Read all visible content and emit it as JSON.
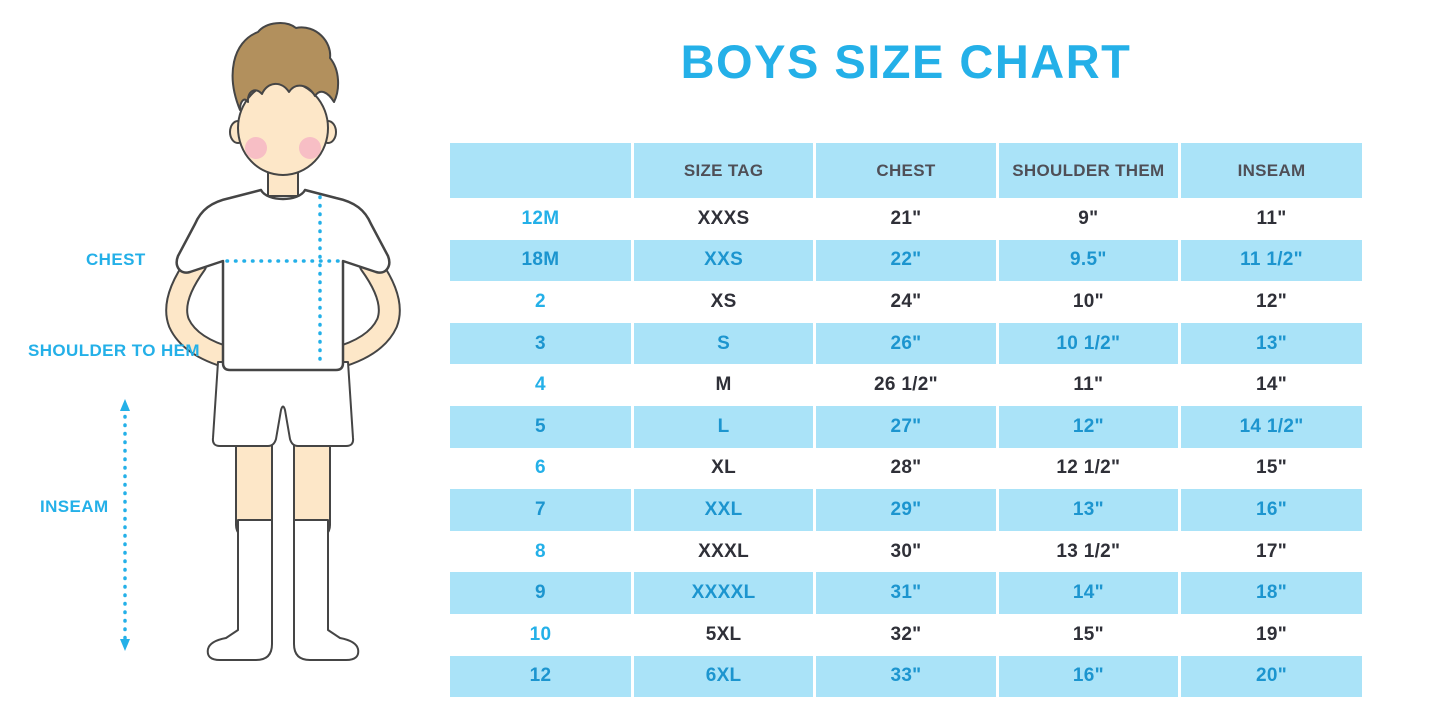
{
  "title": "BOYS SIZE CHART",
  "colors": {
    "accent": "#24b0e8",
    "row_blue": "#aae3f8",
    "header_text": "#4f4f57",
    "dark_text": "#2f3038",
    "blue_text": "#1c95cf"
  },
  "figure": {
    "labels": [
      {
        "id": "chest",
        "text": "CHEST"
      },
      {
        "id": "shoulder-to-hem",
        "text": "SHOULDER TO HEM"
      },
      {
        "id": "inseam",
        "text": "INSEAM"
      }
    ]
  },
  "chart_data": {
    "type": "table",
    "title": "BOYS SIZE CHART",
    "columns": [
      "",
      "SIZE TAG",
      "CHEST",
      "SHOULDER THEM",
      "INSEAM"
    ],
    "rows": [
      [
        "12M",
        "XXXS",
        "21\"",
        "9\"",
        "11\""
      ],
      [
        "18M",
        "XXS",
        "22\"",
        "9.5\"",
        "11 1/2\""
      ],
      [
        "2",
        "XS",
        "24\"",
        "10\"",
        "12\""
      ],
      [
        "3",
        "S",
        "26\"",
        "10 1/2\"",
        "13\""
      ],
      [
        "4",
        "M",
        "26 1/2\"",
        "11\"",
        "14\""
      ],
      [
        "5",
        "L",
        "27\"",
        "12\"",
        "14 1/2\""
      ],
      [
        "6",
        "XL",
        "28\"",
        "12 1/2\"",
        "15\""
      ],
      [
        "7",
        "XXL",
        "29\"",
        "13\"",
        "16\""
      ],
      [
        "8",
        "XXXL",
        "30\"",
        "13 1/2\"",
        "17\""
      ],
      [
        "9",
        "XXXXL",
        "31\"",
        "14\"",
        "18\""
      ],
      [
        "10",
        "5XL",
        "32\"",
        "15\"",
        "19\""
      ],
      [
        "12",
        "6XL",
        "33\"",
        "16\"",
        "20\""
      ]
    ],
    "layout": {
      "row_striping": "alternating white and light blue",
      "header_background": "light blue",
      "grid": "white vertical separators"
    }
  }
}
